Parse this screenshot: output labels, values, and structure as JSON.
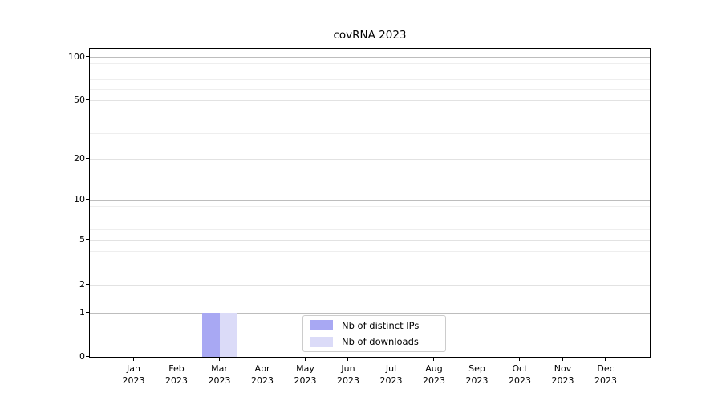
{
  "chart_data": {
    "type": "bar",
    "title": "covRNA 2023",
    "xlabel": "",
    "ylabel": "",
    "x_tick_labels": [
      [
        "Jan",
        "2023"
      ],
      [
        "Feb",
        "2023"
      ],
      [
        "Mar",
        "2023"
      ],
      [
        "Apr",
        "2023"
      ],
      [
        "May",
        "2023"
      ],
      [
        "Jun",
        "2023"
      ],
      [
        "Jul",
        "2023"
      ],
      [
        "Aug",
        "2023"
      ],
      [
        "Sep",
        "2023"
      ],
      [
        "Oct",
        "2023"
      ],
      [
        "Nov",
        "2023"
      ],
      [
        "Dec",
        "2023"
      ]
    ],
    "series": [
      {
        "name": "Nb of distinct IPs",
        "color": "#a8a8f3",
        "values": [
          0,
          0,
          1,
          0,
          0,
          0,
          0,
          0,
          0,
          0,
          0,
          0
        ]
      },
      {
        "name": "Nb of downloads",
        "color": "#dbdbf8",
        "values": [
          0,
          0,
          1,
          0,
          0,
          0,
          0,
          0,
          0,
          0,
          0,
          0
        ]
      }
    ],
    "y_axis": {
      "scale": "symlog",
      "ticks": [
        0,
        1,
        2,
        5,
        10,
        20,
        50,
        100
      ],
      "decade_ticks": [
        1,
        10,
        100
      ],
      "minor_gridlines": [
        3,
        4,
        6,
        7,
        8,
        9,
        30,
        40,
        60,
        70,
        80,
        90
      ],
      "range": [
        0,
        130
      ]
    },
    "grid": "horizontal",
    "legend_position": "inside lower center"
  },
  "colors": {
    "background": "#ffffff",
    "spine": "#000000",
    "text": "#000000",
    "decade_grid": "#bdbdbd",
    "labeled_grid": "#e2e2e2",
    "minor_grid": "#eeeeee",
    "legend_border": "#cccccc",
    "legend_bg": "#ffffff"
  }
}
